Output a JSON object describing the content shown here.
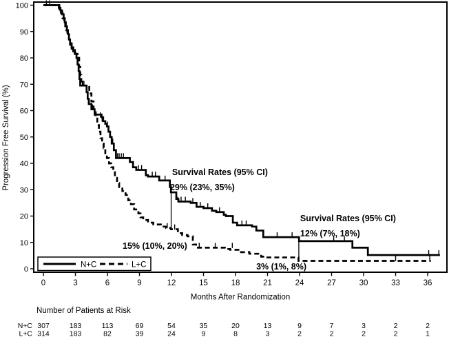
{
  "figure": {
    "background": "#ffffff",
    "ink_color": "#000000"
  },
  "chart_data": {
    "type": "line",
    "subtype": "kaplan-meier-step",
    "title": "",
    "xlabel": "Months After Randomization",
    "ylabel": "Progression Free Survival (%)",
    "x_ticks": [
      0,
      3,
      6,
      9,
      12,
      15,
      18,
      21,
      24,
      27,
      30,
      33,
      36
    ],
    "y_ticks": [
      0,
      10,
      20,
      30,
      40,
      50,
      60,
      70,
      80,
      90,
      100
    ],
    "xlim": [
      0,
      37.5
    ],
    "ylim": [
      0,
      100
    ],
    "grid": false,
    "frame": true,
    "legend_position": "bottom-left-inside",
    "series": [
      {
        "name": "N+C",
        "line_style": "solid",
        "color": "#000000",
        "end_month": 37.15,
        "steps": [
          [
            0,
            100
          ],
          [
            1.45,
            99
          ],
          [
            1.6,
            98
          ],
          [
            1.75,
            96.5
          ],
          [
            1.9,
            95
          ],
          [
            2.0,
            93.5
          ],
          [
            2.1,
            92
          ],
          [
            2.2,
            90.5
          ],
          [
            2.3,
            89
          ],
          [
            2.4,
            87
          ],
          [
            2.5,
            85.5
          ],
          [
            2.65,
            84
          ],
          [
            2.8,
            82.5
          ],
          [
            2.95,
            81.5
          ],
          [
            3.1,
            80
          ],
          [
            3.2,
            77.5
          ],
          [
            3.3,
            75
          ],
          [
            3.38,
            72
          ],
          [
            3.45,
            69.5
          ],
          [
            4.05,
            67
          ],
          [
            4.15,
            64.5
          ],
          [
            4.25,
            62.5
          ],
          [
            4.5,
            60.5
          ],
          [
            4.8,
            58.5
          ],
          [
            5.45,
            57.5
          ],
          [
            5.6,
            56
          ],
          [
            5.8,
            55
          ],
          [
            5.95,
            54
          ],
          [
            6.1,
            52
          ],
          [
            6.25,
            50
          ],
          [
            6.4,
            47.5
          ],
          [
            6.6,
            45
          ],
          [
            6.8,
            42
          ],
          [
            8.1,
            40.5
          ],
          [
            8.4,
            38.5
          ],
          [
            8.7,
            37.5
          ],
          [
            9.6,
            35.5
          ],
          [
            9.8,
            35
          ],
          [
            10.85,
            33.5
          ],
          [
            11.85,
            31
          ],
          [
            11.95,
            29
          ],
          [
            12.45,
            26.5
          ],
          [
            12.65,
            25.5
          ],
          [
            13.8,
            25
          ],
          [
            14.35,
            23.5
          ],
          [
            15.0,
            23
          ],
          [
            15.8,
            22
          ],
          [
            16.2,
            21.5
          ],
          [
            16.9,
            20.5
          ],
          [
            17.1,
            20
          ],
          [
            17.75,
            17.5
          ],
          [
            18.15,
            16.5
          ],
          [
            19.55,
            16
          ],
          [
            19.95,
            14.5
          ],
          [
            20.6,
            12
          ],
          [
            23.95,
            10.5
          ],
          [
            28.95,
            8
          ],
          [
            30.4,
            5.2
          ]
        ],
        "censor_marks": [
          [
            0.28,
            100
          ],
          [
            0.6,
            100
          ],
          [
            2.25,
            90.5
          ],
          [
            2.6,
            84
          ],
          [
            3.0,
            81.5
          ],
          [
            3.65,
            69.5
          ],
          [
            3.8,
            69.5
          ],
          [
            4.3,
            62.5
          ],
          [
            4.6,
            60.5
          ],
          [
            5.35,
            57.5
          ],
          [
            5.5,
            56
          ],
          [
            6.0,
            54
          ],
          [
            6.5,
            47.5
          ],
          [
            6.95,
            42
          ],
          [
            7.1,
            42
          ],
          [
            7.3,
            42
          ],
          [
            7.5,
            42
          ],
          [
            8.9,
            37.5
          ],
          [
            9.2,
            37.5
          ],
          [
            10.2,
            35
          ],
          [
            10.5,
            35
          ],
          [
            11.4,
            33.5
          ],
          [
            12.6,
            25.5
          ],
          [
            12.9,
            25.5
          ],
          [
            13.3,
            25.5
          ],
          [
            14.0,
            25
          ],
          [
            14.7,
            23.5
          ],
          [
            15.4,
            23
          ],
          [
            16.5,
            21.5
          ],
          [
            18.6,
            16.5
          ],
          [
            19.0,
            16.5
          ],
          [
            21.9,
            12
          ],
          [
            23.3,
            12
          ],
          [
            27.2,
            10.5
          ],
          [
            28.2,
            10.5
          ],
          [
            36.1,
            5.2
          ],
          [
            37.05,
            5.2
          ]
        ]
      },
      {
        "name": "L+C",
        "line_style": "dashed",
        "color": "#000000",
        "end_month": 36.3,
        "steps": [
          [
            0,
            100
          ],
          [
            1.5,
            98.5
          ],
          [
            1.65,
            97
          ],
          [
            1.8,
            95
          ],
          [
            1.95,
            93.5
          ],
          [
            2.05,
            92
          ],
          [
            2.15,
            90.5
          ],
          [
            2.25,
            89
          ],
          [
            2.4,
            87
          ],
          [
            2.5,
            85
          ],
          [
            2.65,
            83.5
          ],
          [
            2.8,
            82.5
          ],
          [
            3.0,
            81.5
          ],
          [
            3.2,
            80
          ],
          [
            3.35,
            76.5
          ],
          [
            3.45,
            73.5
          ],
          [
            3.55,
            71
          ],
          [
            3.65,
            69.5
          ],
          [
            4.3,
            66.5
          ],
          [
            4.5,
            63.5
          ],
          [
            4.7,
            60.5
          ],
          [
            4.9,
            57.5
          ],
          [
            5.05,
            54.5
          ],
          [
            5.2,
            52
          ],
          [
            5.35,
            49.5
          ],
          [
            5.5,
            47.5
          ],
          [
            5.65,
            45.5
          ],
          [
            5.8,
            43.5
          ],
          [
            5.95,
            42
          ],
          [
            6.15,
            40
          ],
          [
            6.35,
            38.5
          ],
          [
            6.55,
            37
          ],
          [
            6.7,
            34.5
          ],
          [
            6.9,
            32.5
          ],
          [
            7.1,
            31
          ],
          [
            7.4,
            29.5
          ],
          [
            7.7,
            28
          ],
          [
            7.95,
            26
          ],
          [
            8.2,
            24.5
          ],
          [
            8.5,
            22.5
          ],
          [
            8.9,
            21
          ],
          [
            9.1,
            19.5
          ],
          [
            9.35,
            18.5
          ],
          [
            9.8,
            17.5
          ],
          [
            10.3,
            16.8
          ],
          [
            11.0,
            16
          ],
          [
            11.5,
            15.5
          ],
          [
            11.95,
            15
          ],
          [
            12.6,
            13.5
          ],
          [
            13.0,
            12.8
          ],
          [
            13.5,
            12.3
          ],
          [
            14.0,
            9.2
          ],
          [
            14.3,
            8
          ],
          [
            17.0,
            7.5
          ],
          [
            17.5,
            7.2
          ],
          [
            18.4,
            6.3
          ],
          [
            19.3,
            5.7
          ],
          [
            20.4,
            4.6
          ],
          [
            20.8,
            4.3
          ],
          [
            23.9,
            3
          ]
        ],
        "censor_marks": [
          [
            2.9,
            81.5
          ],
          [
            3.7,
            69.5
          ],
          [
            5.6,
            45.5
          ],
          [
            11.6,
            15.5
          ],
          [
            12.3,
            15
          ],
          [
            14.6,
            8
          ],
          [
            16.1,
            8
          ],
          [
            17.7,
            8
          ],
          [
            33.0,
            3
          ],
          [
            36.2,
            3
          ]
        ]
      }
    ],
    "drop_lines": [
      {
        "month": 11.97,
        "from_pct": 29,
        "to_pct": 15.2
      },
      {
        "month": 23.93,
        "from_pct": 12,
        "to_pct": 3.2
      }
    ],
    "annotations": [
      {
        "text": "Survival Rates (95% CI)",
        "month": 12.06,
        "pct": 35.6,
        "bold": true
      },
      {
        "text": "29% (23%, 35%)",
        "month": 11.87,
        "pct": 29.8,
        "bold": true
      },
      {
        "text": "Survival Rates (95% CI)",
        "month": 24.06,
        "pct": 18.0,
        "bold": true
      },
      {
        "text": "12% (7%, 18%)",
        "month": 24.06,
        "pct": 12.3,
        "bold": true
      },
      {
        "text": "15% (10%, 20%)",
        "month": 7.42,
        "pct": 7.6,
        "bold": true
      },
      {
        "text": "3% (1%, 8%)",
        "month": 19.94,
        "pct": -0.3,
        "bold": true
      }
    ],
    "legend": {
      "items": [
        {
          "label": "N+C",
          "style": "solid"
        },
        {
          "label": "L+C",
          "style": "dashed"
        }
      ]
    },
    "risk_table": {
      "title": "Number of Patients at Risk",
      "months": [
        0,
        3,
        6,
        9,
        12,
        15,
        18,
        21,
        24,
        27,
        30,
        33,
        36
      ],
      "rows": [
        {
          "label": "N+C",
          "values": [
            307,
            183,
            113,
            69,
            54,
            35,
            20,
            13,
            9,
            7,
            3,
            2,
            2
          ]
        },
        {
          "label": "L+C",
          "values": [
            314,
            183,
            82,
            39,
            24,
            9,
            8,
            3,
            2,
            2,
            2,
            2,
            1
          ]
        }
      ]
    }
  }
}
